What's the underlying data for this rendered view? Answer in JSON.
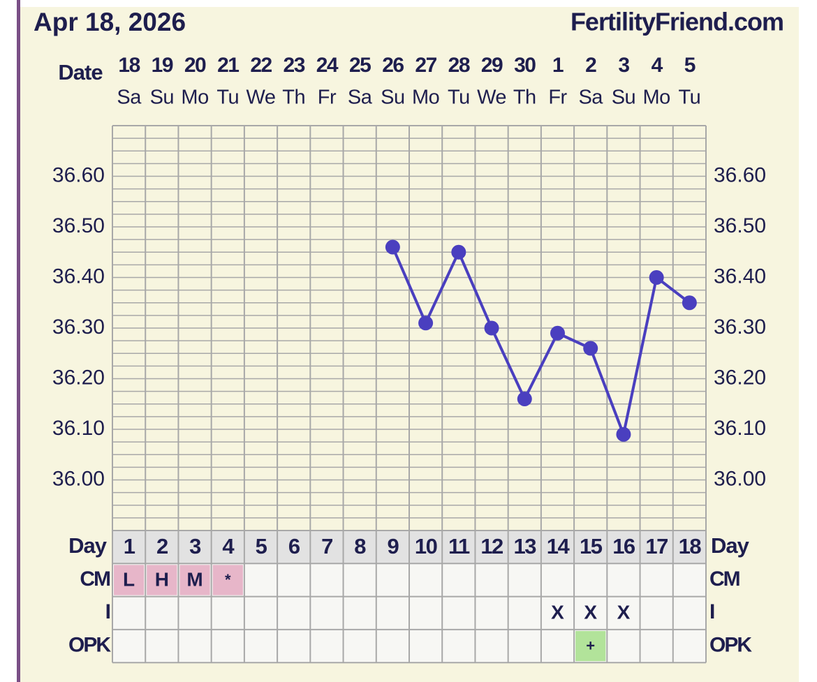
{
  "chart_data": {
    "type": "line",
    "title": "Apr 18, 2026",
    "site": "FertilityFriend.com",
    "date_label": "Date",
    "categories": [
      "18",
      "19",
      "20",
      "21",
      "22",
      "23",
      "24",
      "25",
      "26",
      "27",
      "28",
      "29",
      "30",
      "1",
      "2",
      "3",
      "4",
      "5"
    ],
    "weekdays": [
      "Sa",
      "Su",
      "Mo",
      "Tu",
      "We",
      "Th",
      "Fr",
      "Sa",
      "Su",
      "Mo",
      "Tu",
      "We",
      "Th",
      "Fr",
      "Sa",
      "Su",
      "Mo",
      "Tu"
    ],
    "values": [
      null,
      null,
      null,
      null,
      null,
      null,
      null,
      null,
      36.46,
      36.31,
      36.45,
      36.3,
      36.16,
      36.29,
      36.26,
      36.09,
      36.4,
      36.35
    ],
    "color": "#4a3fbf",
    "ylim": [
      35.9,
      36.7
    ],
    "yticks": [
      {
        "value": 36.0,
        "label": "36.00"
      },
      {
        "value": 36.1,
        "label": "36.10"
      },
      {
        "value": 36.2,
        "label": "36.20"
      },
      {
        "value": 36.3,
        "label": "36.30"
      },
      {
        "value": 36.4,
        "label": "36.40"
      },
      {
        "value": 36.5,
        "label": "36.50"
      },
      {
        "value": 36.6,
        "label": "36.60"
      }
    ],
    "minor_yticks": [
      35.9,
      35.925,
      35.95,
      35.975,
      36.025,
      36.05,
      36.075,
      36.125,
      36.15,
      36.175,
      36.225,
      36.25,
      36.275,
      36.325,
      36.35,
      36.375,
      36.425,
      36.45,
      36.475,
      36.525,
      36.55,
      36.575,
      36.625,
      36.65,
      36.675,
      36.7
    ],
    "grid": true,
    "day_label": "Day",
    "days": [
      1,
      2,
      3,
      4,
      5,
      6,
      7,
      8,
      9,
      10,
      11,
      12,
      13,
      14,
      15,
      16,
      17,
      18
    ],
    "rows": [
      {
        "label": "CM",
        "color": "#e7b6c9",
        "cells": [
          "L",
          "H",
          "M",
          "*",
          null,
          null,
          null,
          null,
          null,
          null,
          null,
          null,
          null,
          null,
          null,
          null,
          null,
          null
        ]
      },
      {
        "label": "I",
        "cells": [
          null,
          null,
          null,
          null,
          null,
          null,
          null,
          null,
          null,
          null,
          null,
          null,
          null,
          "X",
          "X",
          "X",
          null,
          null
        ]
      },
      {
        "label": "OPK",
        "color": "#b2e39a",
        "cells": [
          null,
          null,
          null,
          null,
          null,
          null,
          null,
          null,
          null,
          null,
          null,
          null,
          null,
          null,
          "+",
          null,
          null,
          null
        ]
      }
    ]
  }
}
